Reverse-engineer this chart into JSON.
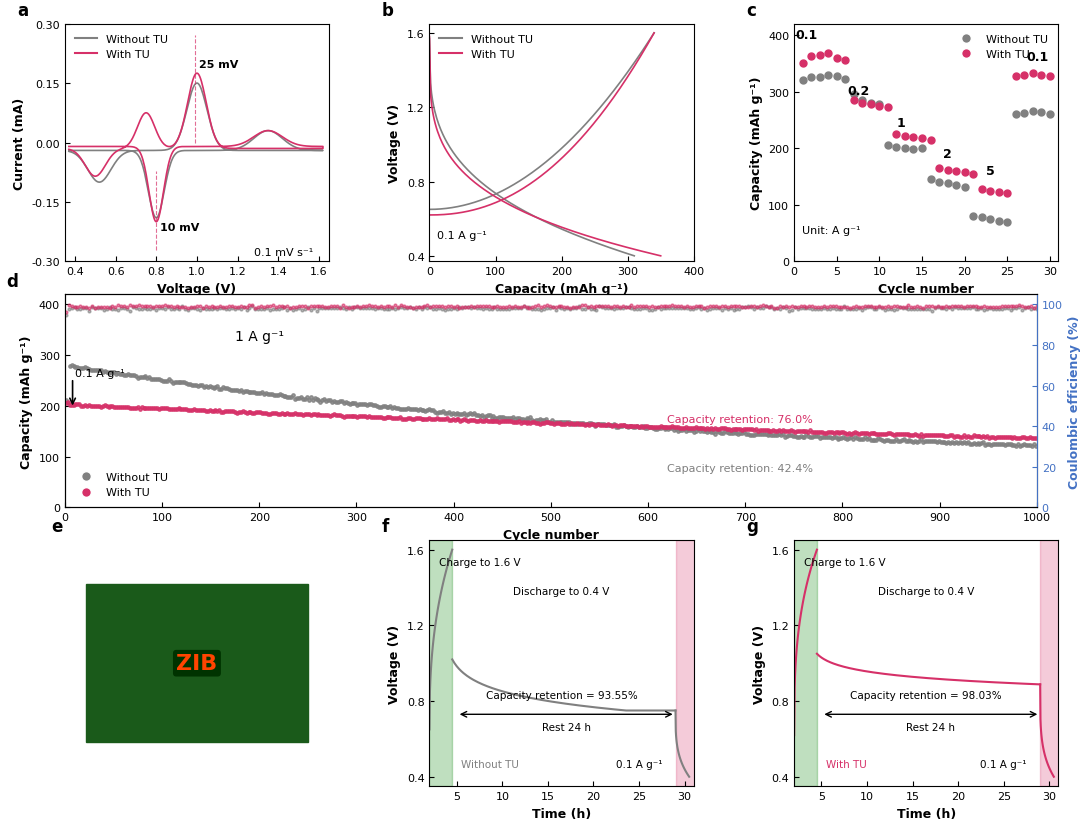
{
  "colors": {
    "gray": "#808080",
    "pink": "#d63068",
    "light_green": "#c8e6c9",
    "light_pink": "#f8bbd0",
    "blue_axis": "#4472C4"
  },
  "panel_a": {
    "label": "a",
    "xlabel": "Voltage (V)",
    "ylabel": "Current (mA)",
    "xlim": [
      0.35,
      1.65
    ],
    "ylim": [
      -0.3,
      0.3
    ],
    "xticks": [
      0.4,
      0.6,
      0.8,
      1.0,
      1.2,
      1.4,
      1.6
    ],
    "yticks": [
      -0.3,
      -0.15,
      0.0,
      0.15,
      0.3
    ],
    "annotation_25mV": "25 mV",
    "annotation_10mV": "10 mV",
    "annotation_scan": "0.1 mV s⁻¹",
    "vline1_x": 0.99,
    "vline2_x": 0.8
  },
  "panel_b": {
    "label": "b",
    "xlabel": "Capacity (mAh g⁻¹)",
    "ylabel": "Voltage (V)",
    "xlim": [
      0,
      400
    ],
    "ylim": [
      0.37,
      1.65
    ],
    "xticks": [
      0,
      100,
      200,
      300,
      400
    ],
    "yticks": [
      0.4,
      0.8,
      1.2,
      1.6
    ],
    "annotation": "0.1 A g⁻¹"
  },
  "panel_c": {
    "label": "c",
    "xlabel": "Cycle number",
    "ylabel": "Capacity (mAh g⁻¹)",
    "xlim": [
      0,
      31
    ],
    "ylim": [
      0,
      420
    ],
    "xticks": [
      0,
      5,
      10,
      15,
      20,
      25,
      30
    ],
    "yticks": [
      0,
      100,
      200,
      300,
      400
    ],
    "unit_text": "Unit: A g⁻¹",
    "rate_labels": [
      "0.1",
      "0.2",
      "1",
      "2",
      "5",
      "0.1"
    ],
    "rate_positions": [
      1.5,
      7.5,
      12.5,
      18.0,
      23.0,
      28.5
    ],
    "rate_y_offsets": [
      395,
      295,
      240,
      185,
      155,
      355
    ],
    "without_TU_data": {
      "x": [
        1,
        2,
        3,
        4,
        5,
        6,
        7,
        8,
        9,
        10,
        11,
        12,
        13,
        14,
        15,
        16,
        17,
        18,
        19,
        20,
        21,
        22,
        23,
        24,
        25,
        26,
        27,
        28,
        29,
        30
      ],
      "y": [
        320,
        325,
        325,
        330,
        328,
        322,
        295,
        285,
        280,
        278,
        205,
        202,
        200,
        198,
        200,
        145,
        140,
        138,
        135,
        132,
        80,
        78,
        75,
        72,
        70,
        260,
        262,
        265,
        263,
        260
      ]
    },
    "with_TU_data": {
      "x": [
        1,
        2,
        3,
        4,
        5,
        6,
        7,
        8,
        9,
        10,
        11,
        12,
        13,
        14,
        15,
        16,
        17,
        18,
        19,
        20,
        21,
        22,
        23,
        24,
        25,
        26,
        27,
        28,
        29,
        30
      ],
      "y": [
        350,
        362,
        365,
        368,
        360,
        355,
        285,
        280,
        278,
        275,
        272,
        225,
        222,
        220,
        218,
        215,
        165,
        162,
        160,
        158,
        155,
        128,
        125,
        123,
        120,
        328,
        330,
        332,
        330,
        328
      ]
    }
  },
  "panel_d": {
    "label": "d",
    "xlabel": "Cycle number",
    "ylabel": "Capacity (mAh g⁻¹)",
    "ylabel_right": "Coulombic efficiency (%)",
    "xlim": [
      0,
      1000
    ],
    "ylim": [
      0,
      420
    ],
    "ylim_right": [
      0,
      105
    ],
    "xticks": [
      0,
      100,
      200,
      300,
      400,
      500,
      600,
      700,
      800,
      900,
      1000
    ],
    "yticks": [
      0,
      100,
      200,
      300,
      400
    ],
    "yticks_right": [
      0,
      20,
      40,
      60,
      80,
      100
    ],
    "annotation_current1": "0.1 A g⁻¹",
    "annotation_current2": "1 A g⁻¹",
    "annotation_without": "Capacity retention: 42.4%",
    "annotation_with": "Capacity retention: 76.0%"
  },
  "panel_f": {
    "label": "f",
    "xlabel": "Time (h)",
    "ylabel": "Voltage (V)",
    "xlim": [
      2,
      31
    ],
    "ylim": [
      0.35,
      1.65
    ],
    "xticks": [
      5,
      10,
      15,
      20,
      25,
      30
    ],
    "yticks": [
      0.4,
      0.8,
      1.2,
      1.6
    ],
    "annotation1": "Charge to 1.6 V",
    "annotation2": "Discharge to 0.4 V",
    "annotation3": "Rest 24 h",
    "annotation4": "Capacity retention = 93.55%",
    "annotation5": "Without TU",
    "annotation6": "0.1 A g⁻¹"
  },
  "panel_g": {
    "label": "g",
    "xlabel": "Time (h)",
    "ylabel": "Voltage (V)",
    "xlim": [
      2,
      31
    ],
    "ylim": [
      0.35,
      1.65
    ],
    "xticks": [
      5,
      10,
      15,
      20,
      25,
      30
    ],
    "yticks": [
      0.4,
      0.8,
      1.2,
      1.6
    ],
    "annotation1": "Charge to 1.6 V",
    "annotation2": "Discharge to 0.4 V",
    "annotation3": "Rest 24 h",
    "annotation4": "Capacity retention = 98.03%",
    "annotation5": "With TU",
    "annotation6": "0.1 A g⁻¹"
  }
}
